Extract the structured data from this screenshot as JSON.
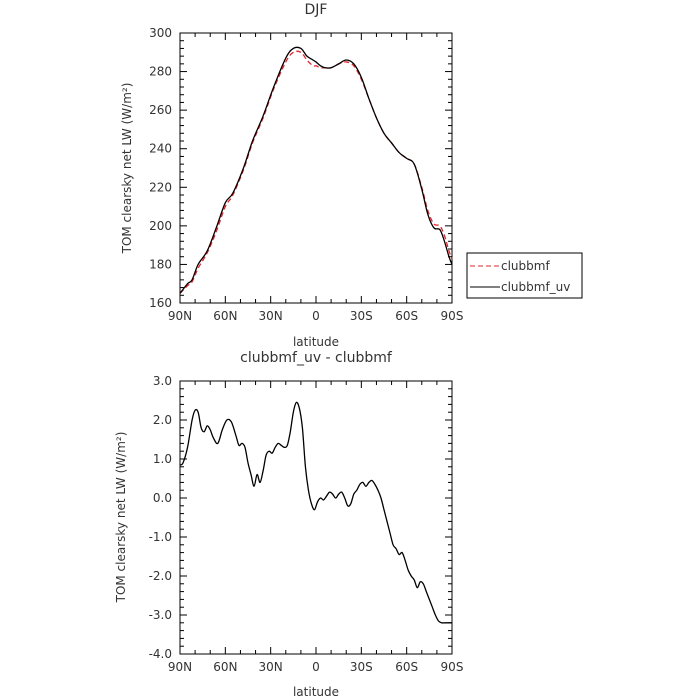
{
  "chart_data": [
    {
      "type": "line",
      "title": "DJF",
      "xlabel": "latitude",
      "ylabel": "TOM clearsky net LW (W/m²)",
      "xlim": [
        90,
        -90
      ],
      "ylim": [
        160,
        300
      ],
      "x_ticks": [
        90,
        60,
        30,
        0,
        -30,
        -60,
        -90
      ],
      "x_tick_labels": [
        "90N",
        "60N",
        "30N",
        "0",
        "30S",
        "60S",
        "90S"
      ],
      "y_ticks": [
        160,
        180,
        200,
        220,
        240,
        260,
        280,
        300
      ],
      "y_tick_labels": [
        "160",
        "180",
        "200",
        "220",
        "240",
        "260",
        "280",
        "300"
      ],
      "legend": "outside-right",
      "grid": false,
      "series": [
        {
          "name": "clubbmf",
          "color": "#e8202a",
          "dash": "dashed",
          "x": [
            90,
            85,
            82,
            78,
            72,
            66,
            60,
            55,
            48,
            42,
            35,
            28,
            20,
            15,
            10,
            6,
            2,
            0,
            -3,
            -6,
            -10,
            -15,
            -20,
            -25,
            -30,
            -35,
            -40,
            -45,
            -50,
            -55,
            -60,
            -65,
            -70,
            -74,
            -78,
            -82,
            -85,
            -88,
            -90
          ],
          "y": [
            165,
            169,
            171,
            178,
            186,
            197,
            210,
            216,
            229,
            243,
            256,
            271,
            285,
            290,
            290,
            286,
            283,
            283,
            282,
            282,
            282,
            284,
            285,
            283,
            276,
            266,
            256,
            248,
            243,
            238,
            235,
            232,
            220,
            208,
            201,
            200,
            195,
            187,
            183
          ]
        },
        {
          "name": "clubbmf_uv",
          "color": "#000000",
          "dash": "solid",
          "x": [
            90,
            85,
            82,
            78,
            72,
            66,
            60,
            55,
            48,
            42,
            35,
            28,
            20,
            15,
            10,
            6,
            2,
            0,
            -3,
            -6,
            -10,
            -15,
            -20,
            -25,
            -30,
            -35,
            -40,
            -45,
            -50,
            -55,
            -60,
            -65,
            -70,
            -74,
            -78,
            -82,
            -85,
            -88,
            -90
          ],
          "y": [
            165,
            170,
            172,
            180,
            187,
            199,
            212,
            217,
            230,
            244,
            257,
            272,
            287,
            292,
            292,
            288,
            286,
            285,
            283,
            282,
            282,
            284,
            286,
            284,
            277,
            266,
            256,
            248,
            243,
            238,
            235,
            232,
            219,
            206,
            199,
            198,
            192,
            184,
            180
          ]
        }
      ]
    },
    {
      "type": "line",
      "title": "clubbmf_uv - clubbmf",
      "xlabel": "latitude",
      "ylabel": "TOM clearsky net LW (W/m²)",
      "xlim": [
        90,
        -90
      ],
      "ylim": [
        -4.0,
        3.0
      ],
      "x_ticks": [
        90,
        60,
        30,
        0,
        -30,
        -60,
        -90
      ],
      "x_tick_labels": [
        "90N",
        "60N",
        "30N",
        "0",
        "30S",
        "60S",
        "90S"
      ],
      "y_ticks": [
        -4.0,
        -3.0,
        -2.0,
        -1.0,
        0.0,
        1.0,
        2.0,
        3.0
      ],
      "y_tick_labels": [
        "-4.0",
        "-3.0",
        "-2.0",
        "-1.0",
        "0.0",
        "1.0",
        "2.0",
        "3.0"
      ],
      "grid": false,
      "series": [
        {
          "color": "#000000",
          "dash": "solid",
          "x": [
            90,
            88,
            85,
            82,
            80,
            78,
            76,
            74,
            72,
            70,
            68,
            65,
            62,
            59,
            56,
            53,
            51,
            49,
            47,
            45,
            43,
            41,
            39,
            37,
            35,
            33,
            31,
            29,
            27,
            25,
            23,
            21,
            19,
            17,
            15,
            13,
            11,
            9,
            7,
            5,
            3,
            1,
            -1,
            -3,
            -5,
            -7,
            -9,
            -11,
            -13,
            -15,
            -17,
            -19,
            -21,
            -23,
            -25,
            -27,
            -29,
            -31,
            -33,
            -35,
            -37,
            -39,
            -41,
            -43,
            -45,
            -47,
            -49,
            -51,
            -53,
            -55,
            -57,
            -59,
            -61,
            -63,
            -65,
            -67,
            -69,
            -71,
            -73,
            -75,
            -77,
            -79,
            -81,
            -83,
            -85,
            -87,
            -89,
            -90
          ],
          "y": [
            0.85,
            0.9,
            1.3,
            2.0,
            2.25,
            2.2,
            1.8,
            1.7,
            1.85,
            1.75,
            1.55,
            1.4,
            1.75,
            2.0,
            1.95,
            1.6,
            1.35,
            1.4,
            1.3,
            0.9,
            0.6,
            0.3,
            0.6,
            0.4,
            0.7,
            1.1,
            1.2,
            1.15,
            1.3,
            1.4,
            1.35,
            1.3,
            1.35,
            1.7,
            2.2,
            2.45,
            2.3,
            1.8,
            0.8,
            0.2,
            -0.15,
            -0.3,
            -0.1,
            0.0,
            -0.05,
            0.05,
            0.15,
            0.1,
            0.0,
            0.1,
            0.15,
            0.0,
            -0.2,
            -0.15,
            0.1,
            0.2,
            0.35,
            0.4,
            0.3,
            0.4,
            0.45,
            0.35,
            0.2,
            0.0,
            -0.3,
            -0.6,
            -0.9,
            -1.2,
            -1.3,
            -1.45,
            -1.4,
            -1.6,
            -1.85,
            -2.0,
            -2.1,
            -2.3,
            -2.15,
            -2.2,
            -2.4,
            -2.6,
            -2.8,
            -3.0,
            -3.15,
            -3.2,
            -3.2,
            -3.2,
            -3.2,
            -3.2
          ]
        }
      ]
    }
  ]
}
